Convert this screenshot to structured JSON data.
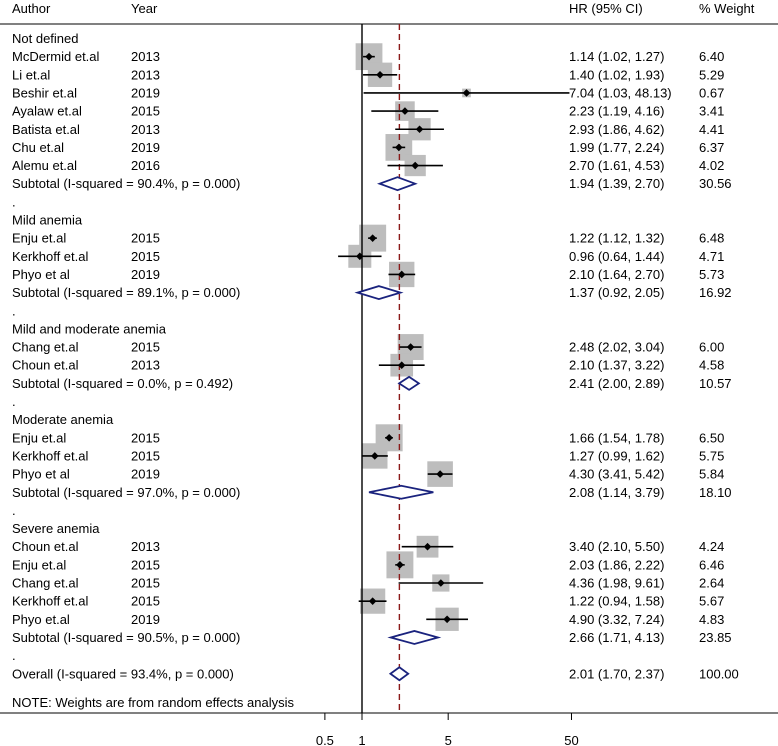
{
  "header": {
    "author": "Author",
    "year": "Year",
    "hr": "HR (95% CI)",
    "weight": "% Weight"
  },
  "note": "NOTE: Weights are from random effects analysis",
  "chart_data": {
    "type": "forest",
    "x_scale": "log",
    "x_ticks": [
      0.5,
      1,
      5,
      50
    ],
    "x_tick_labels": [
      "0.5",
      "1",
      "5",
      "50"
    ],
    "xlim": [
      0.5,
      60
    ],
    "reference_line": 1,
    "overall_line": 2.01,
    "rows": [
      {
        "kind": "group",
        "label": "Not defined"
      },
      {
        "kind": "study",
        "author": "McDermid et.al",
        "year": "2013",
        "hr": 1.14,
        "lo": 1.02,
        "hi": 1.27,
        "ci": "1.14 (1.02, 1.27)",
        "weight": "6.40"
      },
      {
        "kind": "study",
        "author": "Li et.al",
        "year": "2013",
        "hr": 1.4,
        "lo": 1.02,
        "hi": 1.93,
        "ci": "1.40 (1.02, 1.93)",
        "weight": "5.29"
      },
      {
        "kind": "study",
        "author": "Beshir et.al",
        "year": "2019",
        "hr": 7.04,
        "lo": 1.03,
        "hi": 48.13,
        "ci": "7.04 (1.03, 48.13)",
        "weight": "0.67"
      },
      {
        "kind": "study",
        "author": "Ayalaw et.al",
        "year": "2015",
        "hr": 2.23,
        "lo": 1.19,
        "hi": 4.16,
        "ci": "2.23 (1.19, 4.16)",
        "weight": "3.41"
      },
      {
        "kind": "study",
        "author": "Batista et.al",
        "year": "2013",
        "hr": 2.93,
        "lo": 1.86,
        "hi": 4.62,
        "ci": "2.93 (1.86, 4.62)",
        "weight": "4.41"
      },
      {
        "kind": "study",
        "author": "Chu et.al",
        "year": "2019",
        "hr": 1.99,
        "lo": 1.77,
        "hi": 2.24,
        "ci": "1.99 (1.77, 2.24)",
        "weight": "6.37"
      },
      {
        "kind": "study",
        "author": "Alemu et.al",
        "year": "2016",
        "hr": 2.7,
        "lo": 1.61,
        "hi": 4.53,
        "ci": "2.70 (1.61, 4.53)",
        "weight": "4.02"
      },
      {
        "kind": "subtotal",
        "label": "Subtotal  (I-squared = 90.4%, p = 0.000)",
        "hr": 1.94,
        "lo": 1.39,
        "hi": 2.7,
        "ci": "1.94 (1.39, 2.70)",
        "weight": "30.56"
      },
      {
        "kind": "dot",
        "label": "."
      },
      {
        "kind": "group",
        "label": "Mild anemia"
      },
      {
        "kind": "study",
        "author": "Enju et.al",
        "year": "2015",
        "hr": 1.22,
        "lo": 1.12,
        "hi": 1.32,
        "ci": "1.22 (1.12, 1.32)",
        "weight": "6.48"
      },
      {
        "kind": "study",
        "author": "Kerkhoff et.al",
        "year": "2015",
        "hr": 0.96,
        "lo": 0.64,
        "hi": 1.44,
        "ci": "0.96 (0.64, 1.44)",
        "weight": "4.71"
      },
      {
        "kind": "study",
        "author": "Phyo et al",
        "year": "2019",
        "hr": 2.1,
        "lo": 1.64,
        "hi": 2.7,
        "ci": "2.10 (1.64, 2.70)",
        "weight": "5.73"
      },
      {
        "kind": "subtotal",
        "label": "Subtotal  (I-squared = 89.1%, p = 0.000)",
        "hr": 1.37,
        "lo": 0.92,
        "hi": 2.05,
        "ci": "1.37 (0.92, 2.05)",
        "weight": "16.92"
      },
      {
        "kind": "dot",
        "label": "."
      },
      {
        "kind": "group",
        "label": "Mild and moderate anemia"
      },
      {
        "kind": "study",
        "author": "Chang et.al",
        "year": "2015",
        "hr": 2.48,
        "lo": 2.02,
        "hi": 3.04,
        "ci": "2.48 (2.02, 3.04)",
        "weight": "6.00"
      },
      {
        "kind": "study",
        "author": "Choun et.al",
        "year": "2013",
        "hr": 2.1,
        "lo": 1.37,
        "hi": 3.22,
        "ci": "2.10 (1.37, 3.22)",
        "weight": "4.58"
      },
      {
        "kind": "subtotal",
        "label": "Subtotal  (I-squared = 0.0%, p = 0.492)",
        "hr": 2.41,
        "lo": 2.0,
        "hi": 2.89,
        "ci": "2.41 (2.00, 2.89)",
        "weight": "10.57"
      },
      {
        "kind": "dot",
        "label": "."
      },
      {
        "kind": "group",
        "label": "Moderate anemia"
      },
      {
        "kind": "study",
        "author": "Enju et.al",
        "year": "2015",
        "hr": 1.66,
        "lo": 1.54,
        "hi": 1.78,
        "ci": "1.66 (1.54, 1.78)",
        "weight": "6.50"
      },
      {
        "kind": "study",
        "author": "Kerkhoff et.al",
        "year": "2015",
        "hr": 1.27,
        "lo": 0.99,
        "hi": 1.62,
        "ci": "1.27 (0.99, 1.62)",
        "weight": "5.75"
      },
      {
        "kind": "study",
        "author": "Phyo et al",
        "year": "2019",
        "hr": 4.3,
        "lo": 3.41,
        "hi": 5.42,
        "ci": "4.30 (3.41, 5.42)",
        "weight": "5.84"
      },
      {
        "kind": "subtotal",
        "label": "Subtotal  (I-squared = 97.0%, p = 0.000)",
        "hr": 2.08,
        "lo": 1.14,
        "hi": 3.79,
        "ci": "2.08 (1.14, 3.79)",
        "weight": "18.10"
      },
      {
        "kind": "dot",
        "label": "."
      },
      {
        "kind": "group",
        "label": "Severe anemia"
      },
      {
        "kind": "study",
        "author": "Choun et.al",
        "year": "2013",
        "hr": 3.4,
        "lo": 2.1,
        "hi": 5.5,
        "ci": "3.40 (2.10, 5.50)",
        "weight": "4.24"
      },
      {
        "kind": "study",
        "author": "Enju et.al",
        "year": "2015",
        "hr": 2.03,
        "lo": 1.86,
        "hi": 2.22,
        "ci": "2.03 (1.86, 2.22)",
        "weight": "6.46"
      },
      {
        "kind": "study",
        "author": "Chang et.al",
        "year": "2015",
        "hr": 4.36,
        "lo": 1.98,
        "hi": 9.61,
        "ci": "4.36 (1.98, 9.61)",
        "weight": "2.64"
      },
      {
        "kind": "study",
        "author": "Kerkhoff et.al",
        "year": "2015",
        "hr": 1.22,
        "lo": 0.94,
        "hi": 1.58,
        "ci": "1.22 (0.94, 1.58)",
        "weight": "5.67"
      },
      {
        "kind": "study",
        "author": "Phyo et.al",
        "year": "2019",
        "hr": 4.9,
        "lo": 3.32,
        "hi": 7.24,
        "ci": "4.90 (3.32, 7.24)",
        "weight": "4.83"
      },
      {
        "kind": "subtotal",
        "label": "Subtotal  (I-squared = 90.5%, p = 0.000)",
        "hr": 2.66,
        "lo": 1.71,
        "hi": 4.13,
        "ci": "2.66 (1.71, 4.13)",
        "weight": "23.85"
      },
      {
        "kind": "dot",
        "label": "."
      },
      {
        "kind": "overall",
        "label": "Overall  (I-squared = 93.4%, p = 0.000)",
        "hr": 2.01,
        "lo": 1.7,
        "hi": 2.37,
        "ci": "2.01 (1.70, 2.37)",
        "weight": "100.00"
      }
    ]
  },
  "colors": {
    "box": "#bdbdbd",
    "diamond": "#1a237e",
    "overall_line": "#8b1a1a",
    "ink": "#000000"
  }
}
